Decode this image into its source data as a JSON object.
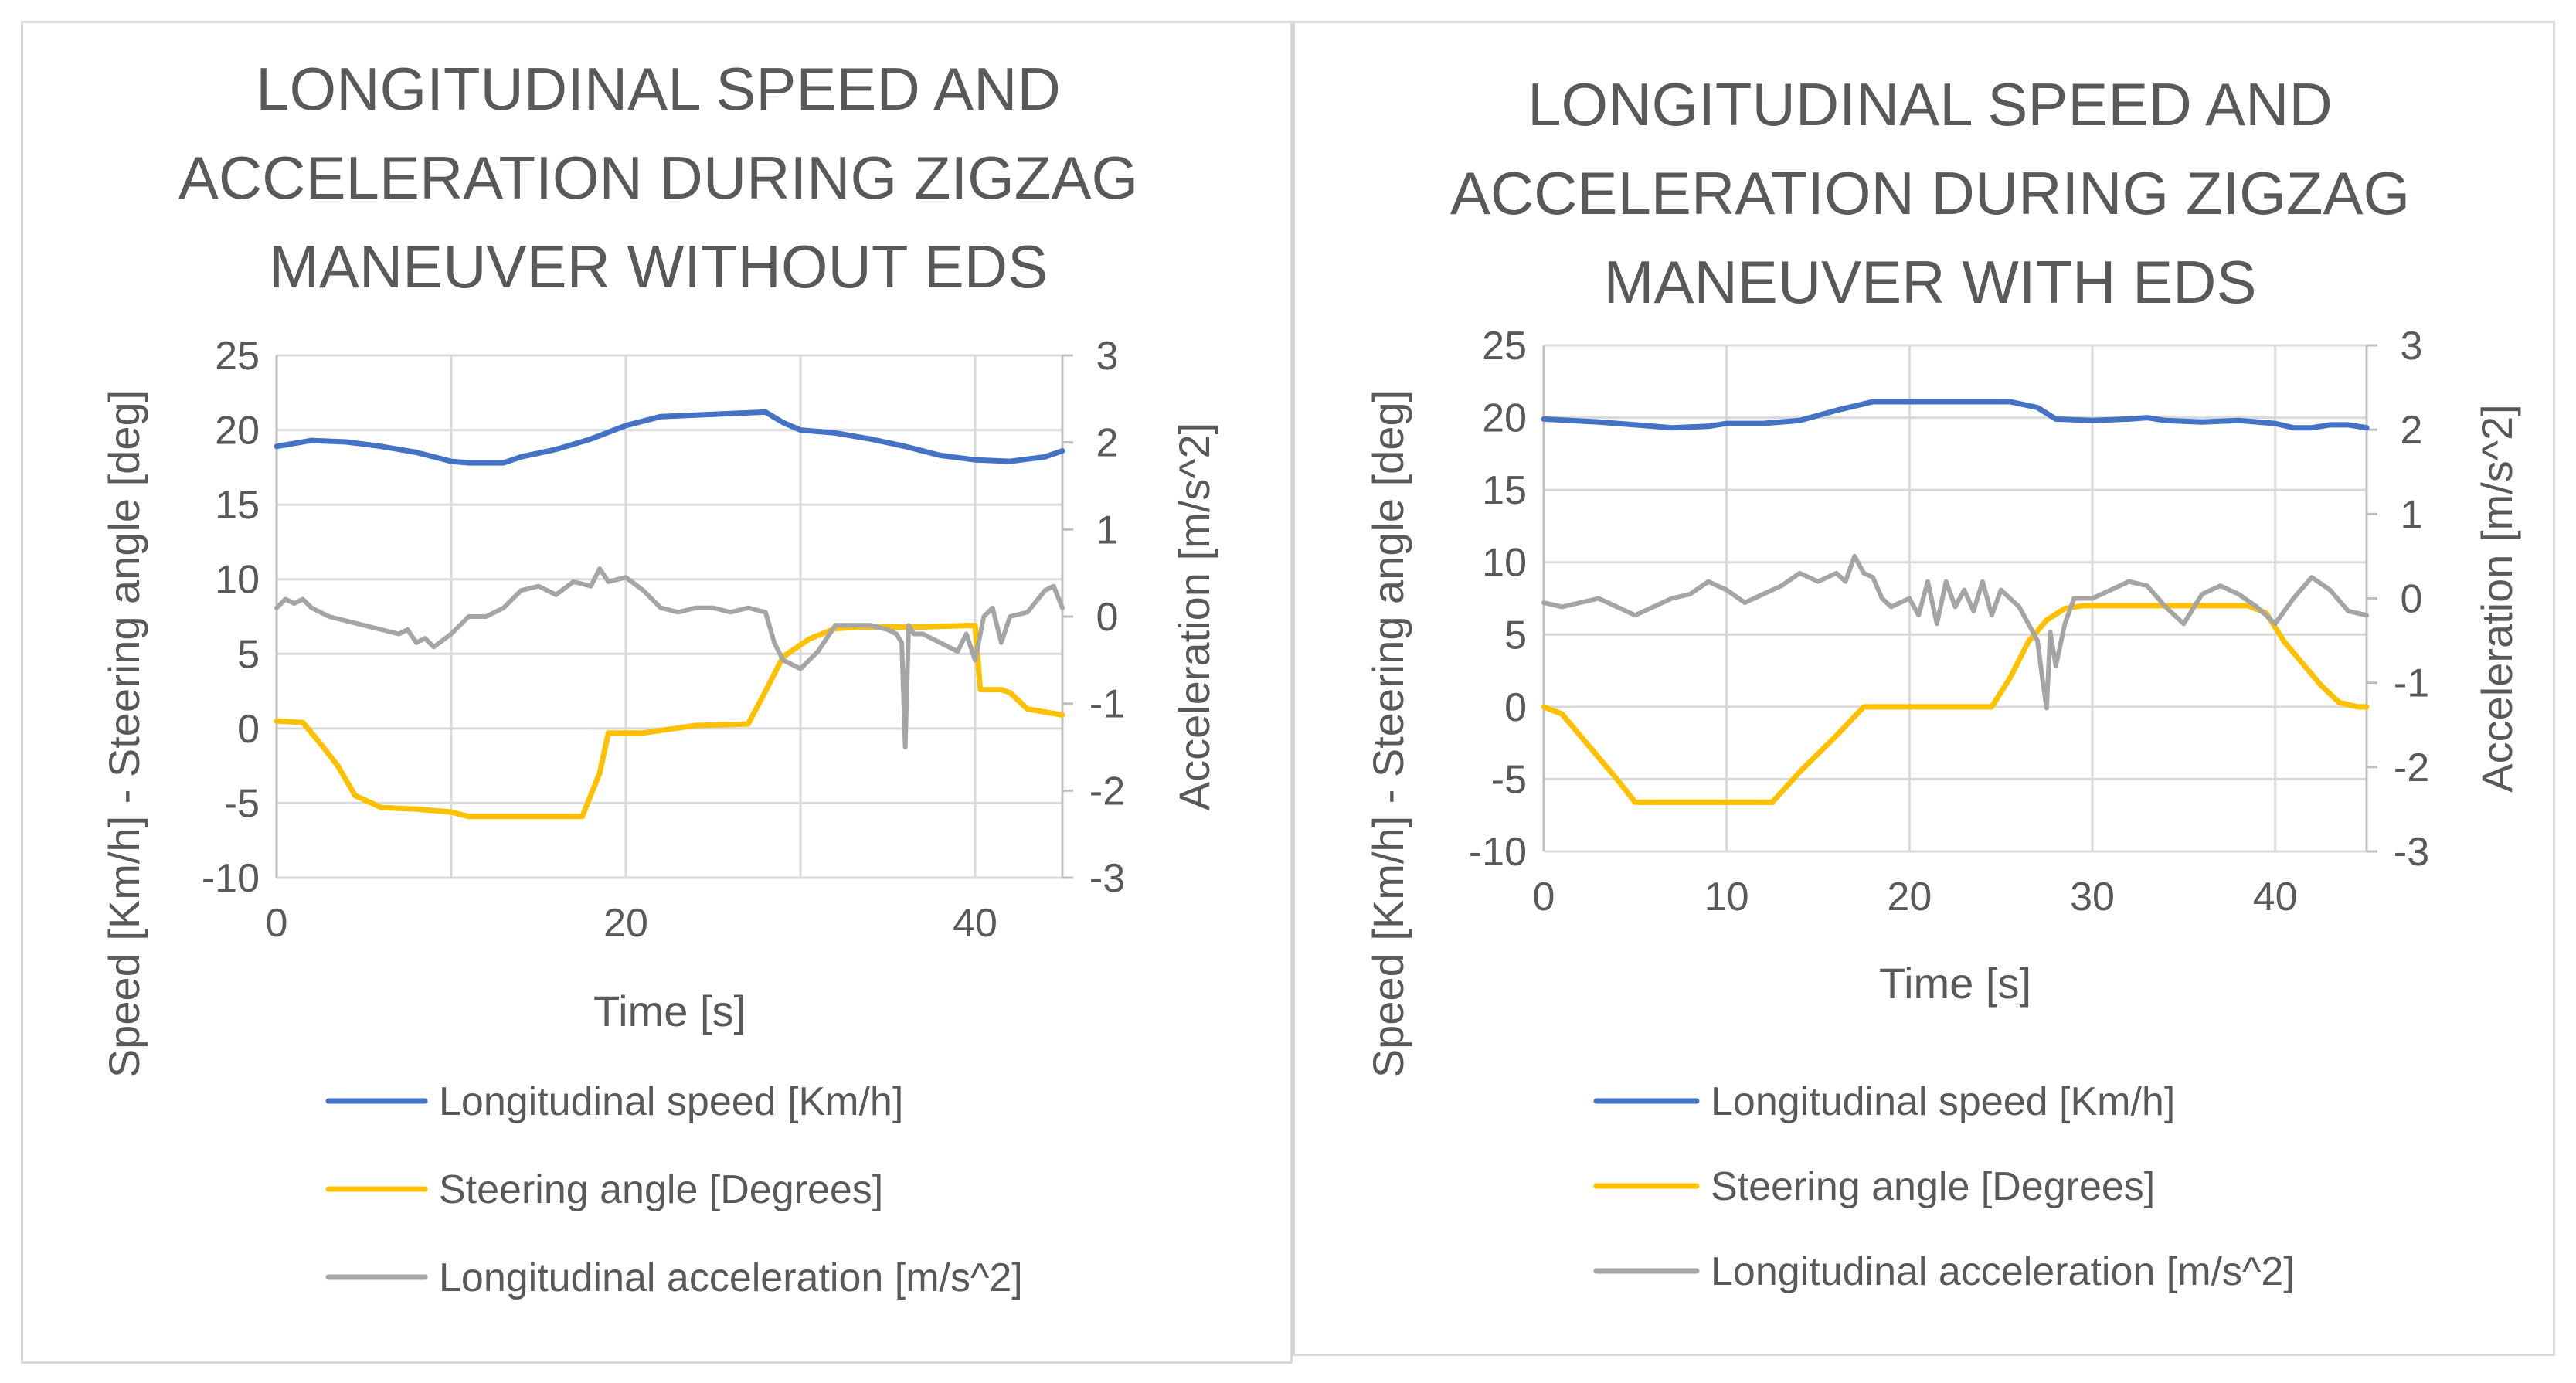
{
  "chart_data": [
    {
      "type": "line",
      "title_lines": [
        "LONGITUDINAL SPEED AND",
        "ACCELERATION DURING ZIGZAG",
        "MANEUVER WITHOUT EDS"
      ],
      "xlabel": "Time [s]",
      "ylabel": "Speed [Km/h] - Steering angle [deg]",
      "y2label": "Acceleration [m/s^2]",
      "xlim": [
        0,
        45
      ],
      "ylim": [
        -10,
        25
      ],
      "y2lim": [
        -3,
        3
      ],
      "xticks": [
        "0",
        "20",
        "40"
      ],
      "yticks": [
        "-10",
        "-5",
        "0",
        "5",
        "10",
        "15",
        "20",
        "25"
      ],
      "y2ticks": [
        "-3",
        "-2",
        "-1",
        "0",
        "1",
        "2",
        "3"
      ],
      "grid": true,
      "legend_position": "bottom",
      "series": [
        {
          "name": "Longitudinal speed [Km/h]",
          "axis": "left",
          "color": "#4472C4",
          "x": [
            0,
            2,
            4,
            6,
            8,
            10,
            11,
            13,
            14,
            16,
            18,
            20,
            22,
            24,
            26,
            28,
            29,
            30,
            32,
            34,
            36,
            38,
            40,
            42,
            44,
            45
          ],
          "y": [
            18.9,
            19.3,
            19.2,
            18.9,
            18.5,
            17.9,
            17.8,
            17.8,
            18.2,
            18.7,
            19.4,
            20.3,
            20.9,
            21.0,
            21.1,
            21.2,
            20.5,
            20.0,
            19.8,
            19.4,
            18.9,
            18.3,
            18.0,
            17.9,
            18.2,
            18.6
          ]
        },
        {
          "name": "Steering angle [Degrees]",
          "axis": "left",
          "color": "#FFC000",
          "x": [
            0,
            1.5,
            2.5,
            3.5,
            4.5,
            6,
            8,
            10,
            11,
            14,
            17.5,
            18.5,
            19,
            21,
            24,
            27,
            28,
            29,
            30.5,
            32,
            33.5,
            35,
            37,
            39.5,
            40,
            40.3,
            41.5,
            42,
            43,
            44,
            45
          ],
          "y": [
            0.5,
            0.4,
            -1.0,
            -2.5,
            -4.5,
            -5.3,
            -5.4,
            -5.6,
            -5.9,
            -5.9,
            -5.9,
            -3.0,
            -0.3,
            -0.3,
            0.2,
            0.3,
            2.5,
            4.8,
            6.0,
            6.7,
            6.8,
            6.8,
            6.8,
            6.9,
            6.9,
            2.6,
            2.6,
            2.4,
            1.3,
            1.1,
            0.9
          ]
        },
        {
          "name": "Longitudinal acceleration [m/s^2]",
          "axis": "right",
          "color": "#A5A5A5",
          "x": [
            0,
            0.5,
            1,
            1.5,
            2,
            3,
            4,
            5,
            6,
            7,
            7.5,
            8,
            8.5,
            9,
            10,
            11,
            12,
            13,
            14,
            15,
            16,
            17,
            18,
            18.5,
            19,
            20,
            21,
            22,
            23,
            24,
            25,
            26,
            27,
            28,
            28.5,
            29,
            30,
            31,
            32,
            33,
            34,
            35,
            35.5,
            35.8,
            36,
            36.2,
            36.5,
            37,
            38,
            39,
            39.5,
            40,
            40.5,
            41,
            41.5,
            42,
            43,
            44,
            44.5,
            45
          ],
          "y": [
            0.1,
            0.2,
            0.15,
            0.2,
            0.1,
            0.0,
            -0.05,
            -0.1,
            -0.15,
            -0.2,
            -0.15,
            -0.3,
            -0.25,
            -0.35,
            -0.2,
            0.0,
            0.0,
            0.1,
            0.3,
            0.35,
            0.25,
            0.4,
            0.35,
            0.55,
            0.4,
            0.45,
            0.3,
            0.1,
            0.05,
            0.1,
            0.1,
            0.05,
            0.1,
            0.05,
            -0.3,
            -0.5,
            -0.6,
            -0.4,
            -0.1,
            -0.1,
            -0.1,
            -0.15,
            -0.2,
            -0.3,
            -1.5,
            -0.1,
            -0.2,
            -0.2,
            -0.3,
            -0.4,
            -0.2,
            -0.5,
            0.0,
            0.1,
            -0.3,
            0.0,
            0.05,
            0.3,
            0.35,
            0.1
          ]
        }
      ]
    },
    {
      "type": "line",
      "title_lines": [
        "LONGITUDINAL SPEED AND",
        "ACCELERATION DURING ZIGZAG",
        "MANEUVER WITH EDS"
      ],
      "xlabel": "Time [s]",
      "ylabel": "Speed [Km/h] - Steering angle [deg]",
      "y2label": "Acceleration [m/s^2]",
      "xlim": [
        0,
        45
      ],
      "ylim": [
        -10,
        25
      ],
      "y2lim": [
        -3,
        3
      ],
      "xticks": [
        "0",
        "10",
        "20",
        "30",
        "40"
      ],
      "yticks": [
        "-10",
        "-5",
        "0",
        "5",
        "10",
        "15",
        "20",
        "25"
      ],
      "y2ticks": [
        "-3",
        "-2",
        "-1",
        "0",
        "1",
        "2",
        "3"
      ],
      "grid": true,
      "legend_position": "bottom",
      "series": [
        {
          "name": "Longitudinal speed [Km/h]",
          "axis": "left",
          "color": "#4472C4",
          "x": [
            0,
            3,
            5,
            7,
            9,
            10,
            12,
            14,
            16,
            17,
            18,
            20,
            22,
            24,
            25.5,
            27,
            28,
            30,
            32,
            33,
            34,
            36,
            38,
            40,
            41,
            42,
            43,
            44,
            45
          ],
          "y": [
            19.9,
            19.7,
            19.5,
            19.3,
            19.4,
            19.6,
            19.6,
            19.8,
            20.5,
            20.8,
            21.1,
            21.1,
            21.1,
            21.1,
            21.1,
            20.7,
            19.9,
            19.8,
            19.9,
            20.0,
            19.8,
            19.7,
            19.8,
            19.6,
            19.3,
            19.3,
            19.5,
            19.5,
            19.3
          ]
        },
        {
          "name": "Steering angle [Degrees]",
          "axis": "left",
          "color": "#FFC000",
          "x": [
            0,
            1,
            2,
            3,
            4,
            5,
            6,
            10,
            12.5,
            14,
            16,
            17.5,
            20,
            22,
            24.5,
            25.5,
            26.5,
            27.5,
            28.5,
            29.5,
            32,
            35,
            38.5,
            39.5,
            40.5,
            41.5,
            42.5,
            43.5,
            44.5,
            45
          ],
          "y": [
            0,
            -0.5,
            -2,
            -3.5,
            -5,
            -6.6,
            -6.6,
            -6.6,
            -6.6,
            -4.5,
            -2,
            0,
            0,
            0,
            0,
            2,
            4.5,
            6,
            6.8,
            7.0,
            7.0,
            7.0,
            7.0,
            6.5,
            4.5,
            3.0,
            1.5,
            0.3,
            0,
            0
          ]
        },
        {
          "name": "Longitudinal acceleration [m/s^2]",
          "axis": "right",
          "color": "#A5A5A5",
          "x": [
            0,
            1,
            2,
            3,
            4,
            5,
            6,
            7,
            8,
            9,
            10,
            11,
            12,
            13,
            14,
            15,
            16,
            16.5,
            17,
            17.5,
            18,
            18.5,
            19,
            20,
            20.5,
            21,
            21.5,
            22,
            22.5,
            23,
            23.5,
            24,
            24.5,
            25,
            26,
            26.5,
            27,
            27.3,
            27.5,
            27.7,
            28,
            28.5,
            29,
            30,
            31,
            32,
            33,
            34,
            35,
            36,
            37,
            38,
            39,
            40,
            41,
            42,
            43,
            44,
            45
          ],
          "y": [
            -0.05,
            -0.1,
            -0.05,
            0.0,
            -0.1,
            -0.2,
            -0.1,
            0.0,
            0.05,
            0.2,
            0.1,
            -0.05,
            0.05,
            0.15,
            0.3,
            0.2,
            0.3,
            0.2,
            0.5,
            0.3,
            0.25,
            0.0,
            -0.1,
            0.0,
            -0.2,
            0.2,
            -0.3,
            0.2,
            -0.1,
            0.1,
            -0.15,
            0.2,
            -0.2,
            0.1,
            -0.1,
            -0.3,
            -0.5,
            -1.0,
            -1.3,
            -0.4,
            -0.8,
            -0.3,
            0.0,
            0.0,
            0.1,
            0.2,
            0.15,
            -0.1,
            -0.3,
            0.05,
            0.15,
            0.05,
            -0.1,
            -0.3,
            0.0,
            0.25,
            0.1,
            -0.15,
            -0.2
          ]
        }
      ]
    }
  ]
}
